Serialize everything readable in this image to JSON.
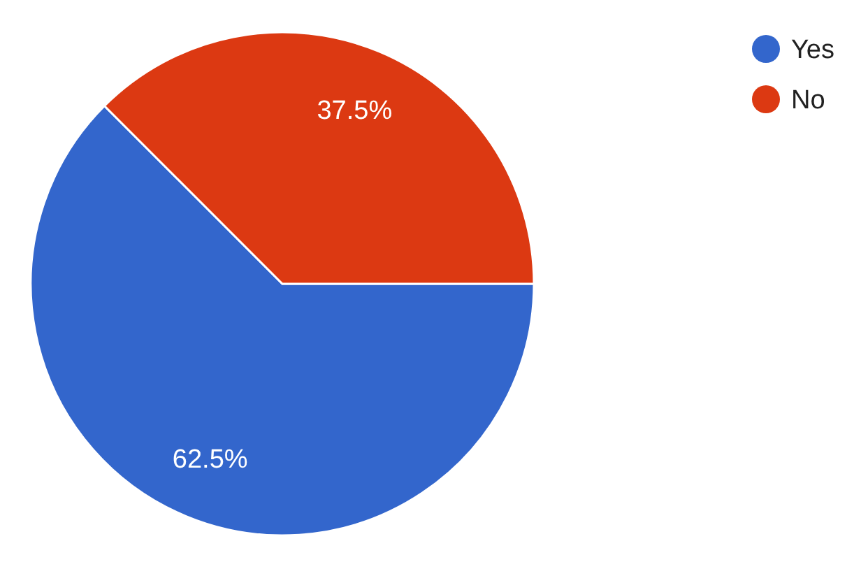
{
  "chart_data": {
    "type": "pie",
    "categories": [
      "Yes",
      "No"
    ],
    "values": [
      62.5,
      37.5
    ],
    "value_labels": [
      "62.5%",
      "37.5%"
    ],
    "colors": [
      "#3366cc",
      "#dc3912"
    ],
    "legend": "top right"
  }
}
